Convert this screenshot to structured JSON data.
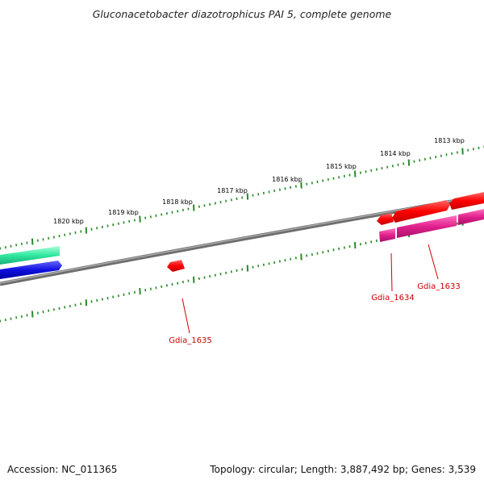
{
  "title": "Gluconacetobacter diazotrophicus PAI 5, complete genome",
  "footer": {
    "accession": "Accession: NC_011365",
    "topology": "Topology: circular; Length: 3,887,492 bp; Genes: 3,539"
  },
  "scale_labels": [
    "1813 kbp",
    "1814 kbp",
    "1815 kbp",
    "1816 kbp",
    "1817 kbp",
    "1818 kbp",
    "1819 kbp",
    "1820 kbp"
  ],
  "gene_labels": [
    "Gdia_1633",
    "Gdia_1634",
    "Gdia_1635"
  ],
  "colors": {
    "backbone": "#808080",
    "ticks": "#2a8a2a",
    "forward_cds": "#ff0000",
    "reverse_cds": "#e0208c",
    "left_green_feature": "#2ee8a0",
    "left_blue_feature": "#1010e0",
    "gene_label": "#cc0000"
  }
}
